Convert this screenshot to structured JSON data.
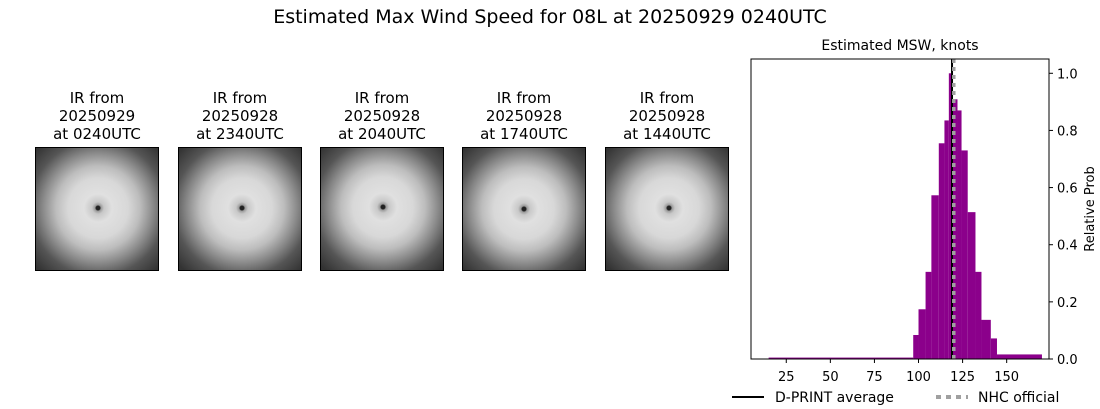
{
  "title": "Estimated Max Wind Speed for 08L at 20250929 0240UTC",
  "ir_images": [
    {
      "label_line1": "IR from",
      "date": "20250929",
      "time": "at 0240UTC"
    },
    {
      "label_line1": "IR from",
      "date": "20250928",
      "time": "at 2340UTC"
    },
    {
      "label_line1": "IR from",
      "date": "20250928",
      "time": "at 2040UTC"
    },
    {
      "label_line1": "IR from",
      "date": "20250928",
      "time": "at 1740UTC"
    },
    {
      "label_line1": "IR from",
      "date": "20250928",
      "time": "at 1440UTC"
    }
  ],
  "chart_data": {
    "type": "bar",
    "title": "Estimated MSW, knots",
    "xlabel": "",
    "ylabel": "Relative Prob",
    "xlim": [
      5,
      174
    ],
    "ylim": [
      0,
      1.05
    ],
    "xticks": [
      25,
      50,
      75,
      100,
      125,
      150
    ],
    "yticks": [
      0.0,
      0.2,
      0.4,
      0.6,
      0.8,
      1.0
    ],
    "ytick_labels": [
      "0.0",
      "0.2",
      "0.4",
      "0.6",
      "0.8",
      "1.0"
    ],
    "y_axis_side": "right",
    "bar_color": "#8b008b",
    "bins": [
      {
        "x0": 15,
        "x1": 97,
        "value": 0.005
      },
      {
        "x0": 97,
        "x1": 100,
        "value": 0.084
      },
      {
        "x0": 100,
        "x1": 104,
        "value": 0.174
      },
      {
        "x0": 104,
        "x1": 107.3,
        "value": 0.305
      },
      {
        "x0": 107.3,
        "x1": 111.5,
        "value": 0.573
      },
      {
        "x0": 111.5,
        "x1": 114.7,
        "value": 0.755
      },
      {
        "x0": 114.7,
        "x1": 117.2,
        "value": 0.835
      },
      {
        "x0": 117.2,
        "x1": 119.5,
        "value": 1.0
      },
      {
        "x0": 119.5,
        "x1": 122.1,
        "value": 0.909
      },
      {
        "x0": 122.1,
        "x1": 124.4,
        "value": 0.87
      },
      {
        "x0": 124.4,
        "x1": 127.9,
        "value": 0.73
      },
      {
        "x0": 127.9,
        "x1": 132.3,
        "value": 0.514
      },
      {
        "x0": 132.3,
        "x1": 135.7,
        "value": 0.305
      },
      {
        "x0": 135.7,
        "x1": 141,
        "value": 0.137
      },
      {
        "x0": 141,
        "x1": 144.5,
        "value": 0.072
      },
      {
        "x0": 144.5,
        "x1": 170,
        "value": 0.016
      }
    ],
    "lines": [
      {
        "name": "D-PRINT average",
        "x": 119,
        "color": "#000000",
        "style": "solid"
      },
      {
        "name": "NHC official",
        "x": 120,
        "color": "#a0a0a0",
        "style": "dotted"
      }
    ],
    "legend_placement": "bottom"
  }
}
